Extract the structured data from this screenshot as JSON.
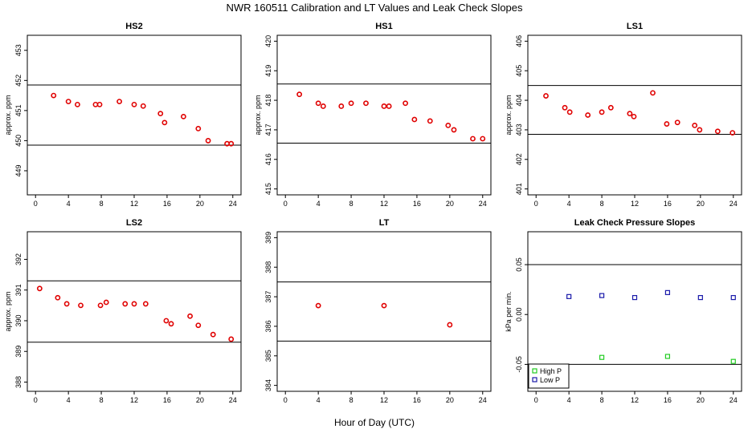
{
  "figure": {
    "title": "NWR  160511  Calibration and LT Values and Leak Check Slopes",
    "xlabel": "Hour of Day (UTC)"
  },
  "colors": {
    "calibration_points": "#e00000",
    "high_p": "#22cc22",
    "low_p": "#1a1aaa",
    "axes": "#000000"
  },
  "chart_data": [
    {
      "type": "scatter",
      "title": "HS2",
      "ylabel": "approx. ppm",
      "xlim": [
        -1,
        25
      ],
      "xticks": [
        0,
        4,
        8,
        12,
        16,
        20,
        24
      ],
      "ylim": [
        448.2,
        453.5
      ],
      "yticks": [
        449,
        450,
        451,
        452,
        453
      ],
      "hlines": [
        451.85,
        449.85
      ],
      "series": [
        {
          "marker": "circle",
          "color": "#e00000",
          "x": [
            2.2,
            4.0,
            5.1,
            7.3,
            7.8,
            10.2,
            12.0,
            13.1,
            15.2,
            15.7,
            18.0,
            19.8,
            21.0,
            23.3,
            23.8
          ],
          "y": [
            451.5,
            451.3,
            451.2,
            451.2,
            451.2,
            451.3,
            451.2,
            451.15,
            450.9,
            450.6,
            450.8,
            450.4,
            450.0,
            449.9,
            449.9
          ]
        }
      ]
    },
    {
      "type": "scatter",
      "title": "HS1",
      "ylabel": "approx. ppm",
      "xlim": [
        -1,
        25
      ],
      "xticks": [
        0,
        4,
        8,
        12,
        16,
        20,
        24
      ],
      "ylim": [
        414.8,
        420.2
      ],
      "yticks": [
        415,
        416,
        417,
        418,
        419,
        420
      ],
      "hlines": [
        418.55,
        416.55
      ],
      "series": [
        {
          "marker": "circle",
          "color": "#e00000",
          "x": [
            1.7,
            4.0,
            4.6,
            6.8,
            8.0,
            9.8,
            12.0,
            12.6,
            14.6,
            15.7,
            17.6,
            19.8,
            20.5,
            22.8,
            24.0
          ],
          "y": [
            418.2,
            417.9,
            417.8,
            417.8,
            417.9,
            417.9,
            417.8,
            417.8,
            417.9,
            417.35,
            417.3,
            417.15,
            417.0,
            416.7,
            416.7
          ]
        }
      ]
    },
    {
      "type": "scatter",
      "title": "LS1",
      "ylabel": "approx. ppm",
      "xlim": [
        -1,
        25
      ],
      "xticks": [
        0,
        4,
        8,
        12,
        16,
        20,
        24
      ],
      "ylim": [
        400.8,
        406.2
      ],
      "yticks": [
        401,
        402,
        403,
        404,
        405,
        406
      ],
      "hlines": [
        404.5,
        402.85
      ],
      "series": [
        {
          "marker": "circle",
          "color": "#e00000",
          "x": [
            1.2,
            3.5,
            4.1,
            6.3,
            8.0,
            9.1,
            11.4,
            11.9,
            14.2,
            15.9,
            17.2,
            19.3,
            19.9,
            22.1,
            23.9
          ],
          "y": [
            404.15,
            403.75,
            403.6,
            403.5,
            403.6,
            403.75,
            403.55,
            403.45,
            404.25,
            403.2,
            403.25,
            403.15,
            403.0,
            402.95,
            402.9
          ]
        }
      ]
    },
    {
      "type": "scatter",
      "title": "LS2",
      "ylabel": "approx. ppm",
      "xlim": [
        -1,
        25
      ],
      "xticks": [
        0,
        4,
        8,
        12,
        16,
        20,
        24
      ],
      "ylim": [
        387.7,
        392.9
      ],
      "yticks": [
        388,
        389,
        390,
        391,
        392
      ],
      "hlines": [
        391.3,
        389.3
      ],
      "series": [
        {
          "marker": "circle",
          "color": "#e00000",
          "x": [
            0.5,
            2.7,
            3.8,
            5.5,
            7.9,
            8.6,
            10.9,
            12.0,
            13.4,
            15.9,
            16.5,
            18.8,
            19.8,
            21.6,
            23.8
          ],
          "y": [
            391.05,
            390.75,
            390.55,
            390.5,
            390.5,
            390.6,
            390.55,
            390.55,
            390.55,
            390.0,
            389.9,
            390.15,
            389.85,
            389.55,
            389.4
          ]
        }
      ]
    },
    {
      "type": "scatter",
      "title": "LT",
      "ylabel": "",
      "xlim": [
        -1,
        25
      ],
      "xticks": [
        0,
        4,
        8,
        12,
        16,
        20,
        24
      ],
      "ylim": [
        383.8,
        389.2
      ],
      "yticks": [
        384,
        385,
        386,
        387,
        388,
        389
      ],
      "hlines": [
        387.5,
        385.5
      ],
      "series": [
        {
          "marker": "circle",
          "color": "#e00000",
          "x": [
            4.0,
            12.0,
            20.0
          ],
          "y": [
            386.7,
            386.7,
            386.05
          ]
        }
      ]
    },
    {
      "type": "scatter",
      "title": "Leak Check Pressure Slopes",
      "ylabel": "kPa per min.",
      "xlim": [
        -1,
        25
      ],
      "xticks": [
        0,
        4,
        8,
        12,
        16,
        20,
        24
      ],
      "ylim": [
        -0.077,
        0.083
      ],
      "yticks": [
        -0.05,
        0.0,
        0.05
      ],
      "ytick_labels": [
        "-0.05",
        "0.00",
        "0.05"
      ],
      "hlines": [
        0.05,
        -0.05
      ],
      "legend": {
        "position": "bottom-left"
      },
      "series": [
        {
          "name": "High P",
          "marker": "square",
          "color": "#22cc22",
          "x": [
            8.0,
            16.0,
            24.0
          ],
          "y": [
            -0.043,
            -0.042,
            -0.047
          ]
        },
        {
          "name": "Low P",
          "marker": "square",
          "color": "#1a1aaa",
          "x": [
            4.0,
            8.0,
            12.0,
            16.0,
            20.0,
            24.0
          ],
          "y": [
            0.018,
            0.019,
            0.017,
            0.022,
            0.017,
            0.017
          ]
        }
      ]
    }
  ]
}
